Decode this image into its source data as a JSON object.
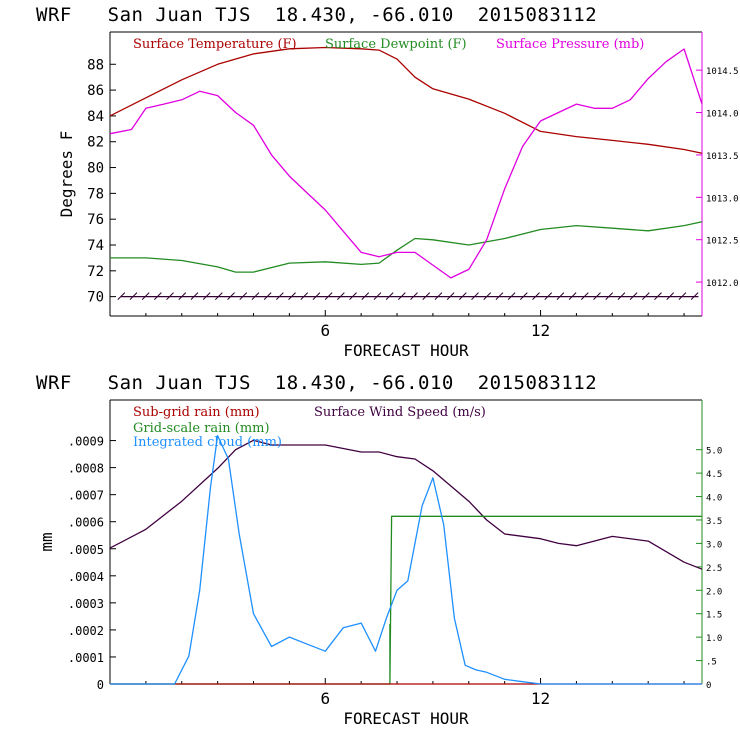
{
  "charts_meta": [
    {
      "title": "WRF   San Juan TJS  18.430, -66.010  2015083112"
    },
    {
      "title": "WRF   San Juan TJS  18.430, -66.010  2015083112"
    }
  ],
  "chart_data": [
    {
      "type": "line",
      "title": "WRF   San Juan TJS  18.430, -66.010  2015083112",
      "xlabel": "FORECAST HOUR",
      "ylabel": "Degrees F",
      "xlim": [
        0,
        16.5
      ],
      "ylim": [
        68.5,
        90.5
      ],
      "y2lim": [
        1011.6,
        1014.95
      ],
      "x_ticks": [
        6,
        12
      ],
      "y_ticks": [
        70,
        72,
        74,
        76,
        78,
        80,
        82,
        84,
        86,
        88
      ],
      "y2_ticks": [
        {
          "v": 1012.0,
          "label": "1012.0"
        },
        {
          "v": 1012.5,
          "label": "1012.5"
        },
        {
          "v": 1013.0,
          "label": "1013.0"
        },
        {
          "v": 1013.5,
          "label": "1013.5"
        },
        {
          "v": 1014.0,
          "label": "1014.0"
        },
        {
          "v": 1014.5,
          "label": "1014.5"
        }
      ],
      "legend": [
        {
          "name": "Surface Temperature (F)",
          "color": "#aa0000"
        },
        {
          "name": "Surface Dewpoint (F)",
          "color": "#228b22"
        },
        {
          "name": "Surface Pressure (mb)",
          "color": "#e000e0"
        }
      ],
      "series": [
        {
          "name": "Surface Temperature (F)",
          "color": "#aa0000",
          "axis": "left",
          "x": [
            0,
            1,
            2,
            3,
            4,
            5,
            6,
            7,
            7.5,
            8,
            8.5,
            9,
            10,
            11,
            12,
            13,
            14,
            15,
            16,
            16.5
          ],
          "y": [
            84,
            85.4,
            86.8,
            88,
            88.8,
            89.2,
            89.3,
            89.2,
            89.1,
            88.4,
            87,
            86.1,
            85.3,
            84.2,
            82.8,
            82.4,
            82.1,
            81.8,
            81.4,
            81.1
          ]
        },
        {
          "name": "Surface Dewpoint (F)",
          "color": "#228b22",
          "axis": "left",
          "x": [
            0,
            1,
            2,
            3,
            3.5,
            4,
            5,
            6,
            7,
            7.5,
            8,
            8.5,
            9,
            10,
            11,
            12,
            13,
            14,
            15,
            16,
            16.5
          ],
          "y": [
            73,
            73,
            72.8,
            72.3,
            71.9,
            71.9,
            72.6,
            72.7,
            72.5,
            72.6,
            73.6,
            74.5,
            74.4,
            74,
            74.5,
            75.2,
            75.5,
            75.3,
            75.1,
            75.5,
            75.8
          ]
        },
        {
          "name": "Surface Pressure (mb)",
          "color": "#e000e0",
          "axis": "right",
          "x": [
            0,
            0.6,
            1,
            1.5,
            2,
            2.5,
            3,
            3.5,
            4,
            4.5,
            5,
            5.5,
            6,
            6.5,
            7,
            7.5,
            8,
            8.5,
            9,
            9.5,
            10,
            10.5,
            11,
            11.5,
            12,
            12.5,
            13,
            13.5,
            14,
            14.5,
            15,
            15.5,
            16,
            16.5
          ],
          "y": [
            1013.75,
            1013.8,
            1014.05,
            1014.1,
            1014.15,
            1014.25,
            1014.2,
            1014.0,
            1013.85,
            1013.5,
            1013.25,
            1013.05,
            1012.85,
            1012.6,
            1012.35,
            1012.3,
            1012.35,
            1012.35,
            1012.2,
            1012.05,
            1012.15,
            1012.5,
            1013.1,
            1013.6,
            1013.9,
            1014.0,
            1014.1,
            1014.05,
            1014.05,
            1014.15,
            1014.4,
            1014.6,
            1014.75,
            1014.1
          ]
        },
        {
          "name": "Surface wind barbs",
          "color": "#300030",
          "axis": "left",
          "type": "barbs",
          "y": 70,
          "x_start": 0.3,
          "x_end": 16.4,
          "spacing": 0.34
        }
      ]
    },
    {
      "type": "line",
      "title": "WRF   San Juan TJS  18.430, -66.010  2015083112",
      "xlabel": "FORECAST HOUR",
      "ylabel": "mm",
      "xlim": [
        0,
        16.5
      ],
      "ylim": [
        0,
        0.00105
      ],
      "y2lim": [
        0,
        6.06
      ],
      "x_ticks": [
        6,
        12
      ],
      "y_ticks": [
        {
          "v": 0,
          "label": "0"
        },
        {
          "v": 0.0001,
          "label": ".0001"
        },
        {
          "v": 0.0002,
          "label": ".0002"
        },
        {
          "v": 0.0003,
          "label": ".0003"
        },
        {
          "v": 0.0004,
          "label": ".0004"
        },
        {
          "v": 0.0005,
          "label": ".0005"
        },
        {
          "v": 0.0006,
          "label": ".0006"
        },
        {
          "v": 0.0007,
          "label": ".0007"
        },
        {
          "v": 0.0008,
          "label": ".0008"
        },
        {
          "v": 0.0009,
          "label": ".0009"
        }
      ],
      "y2_ticks": [
        {
          "v": 0,
          "label": "0"
        },
        {
          "v": 0.5,
          "label": ".5"
        },
        {
          "v": 1.0,
          "label": "1.0"
        },
        {
          "v": 1.5,
          "label": "1.5"
        },
        {
          "v": 2.0,
          "label": "2.0"
        },
        {
          "v": 2.5,
          "label": "2.5"
        },
        {
          "v": 3.0,
          "label": "3.0"
        },
        {
          "v": 3.5,
          "label": "3.5"
        },
        {
          "v": 4.0,
          "label": "4.0"
        },
        {
          "v": 4.5,
          "label": "4.5"
        },
        {
          "v": 5.0,
          "label": "5.0"
        }
      ],
      "legend": [
        {
          "name": "Sub-grid rain (mm)",
          "color": "#aa0000"
        },
        {
          "name": "Surface Wind Speed (m/s)",
          "color": "#400040"
        },
        {
          "name": "Grid-scale rain (mm)",
          "color": "#228b22"
        },
        {
          "name": "Integrated cloud (mm)",
          "color": "#1e90ff"
        }
      ],
      "series": [
        {
          "name": "Surface Wind Speed (m/s)",
          "color": "#400040",
          "axis": "right",
          "x": [
            0,
            1,
            2,
            3,
            3.5,
            4,
            4.5,
            5,
            6,
            7,
            7.5,
            8,
            8.5,
            9,
            10,
            10.5,
            11,
            12,
            12.5,
            13,
            14,
            15,
            16,
            16.5
          ],
          "y": [
            2.9,
            3.3,
            3.9,
            4.6,
            5.0,
            5.2,
            5.1,
            5.1,
            5.1,
            4.95,
            4.95,
            4.85,
            4.8,
            4.55,
            3.9,
            3.5,
            3.2,
            3.1,
            3.0,
            2.95,
            3.15,
            3.05,
            2.6,
            2.45
          ]
        },
        {
          "name": "Grid-scale rain (mm)",
          "color": "#228b22",
          "axis": "left",
          "x": [
            0,
            7.8,
            7.8,
            7.8,
            7.85,
            7.9,
            8.0,
            16.5
          ],
          "y": [
            0,
            0,
            0.00022,
            0,
            0.00062,
            0.00062,
            0.00062,
            0.00062
          ]
        },
        {
          "name": "Sub-grid rain (mm)",
          "color": "#aa0000",
          "axis": "left",
          "x": [
            0,
            16.5
          ],
          "y": [
            0,
            0
          ]
        },
        {
          "name": "Integrated cloud (mm)",
          "color": "#1e90ff",
          "axis": "right",
          "x": [
            0,
            1,
            1.8,
            2.2,
            2.5,
            2.8,
            3.0,
            3.3,
            3.6,
            4.0,
            4.5,
            5.0,
            5.5,
            6.0,
            6.5,
            7.0,
            7.4,
            7.7,
            8.0,
            8.3,
            8.7,
            9.0,
            9.3,
            9.6,
            9.9,
            10.2,
            10.5,
            11.0,
            11.5,
            12.0,
            16.5
          ],
          "y": [
            0,
            0,
            0,
            0.6,
            2.0,
            4.2,
            5.3,
            4.8,
            3.2,
            1.5,
            0.8,
            1.0,
            0.85,
            0.7,
            1.2,
            1.3,
            0.7,
            1.4,
            2.0,
            2.2,
            3.8,
            4.4,
            3.4,
            1.4,
            0.4,
            0.3,
            0.25,
            0.1,
            0.05,
            0,
            0
          ]
        }
      ]
    }
  ]
}
